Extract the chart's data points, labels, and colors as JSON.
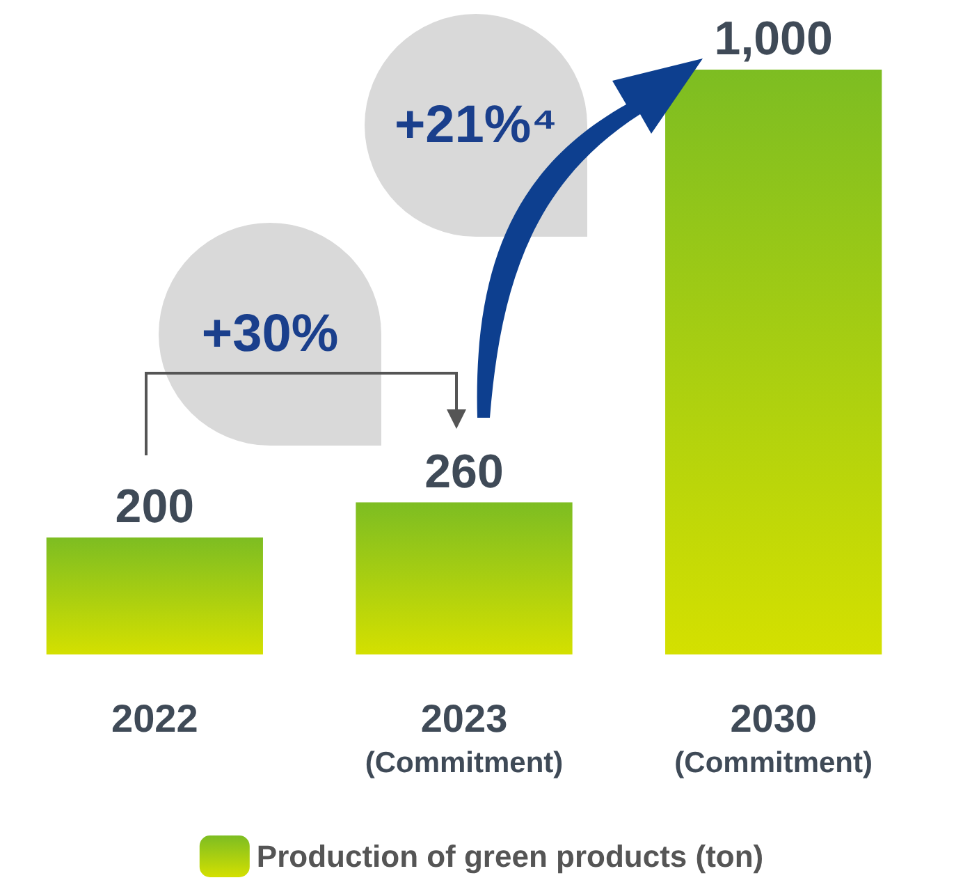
{
  "chart_data": {
    "type": "bar",
    "categories": [
      "2022",
      "2023\n(Commitment)",
      "2030\n(Commitment)"
    ],
    "series": [
      {
        "name": "Production of green products (ton)",
        "color": "#7dbd22",
        "values": [
          200,
          260,
          1000
        ],
        "value_labels": [
          "200",
          "260",
          "1,000"
        ]
      }
    ],
    "annotations": [
      "+30%",
      "+21%⁴"
    ],
    "legend": "bottom",
    "grid": false
  }
}
